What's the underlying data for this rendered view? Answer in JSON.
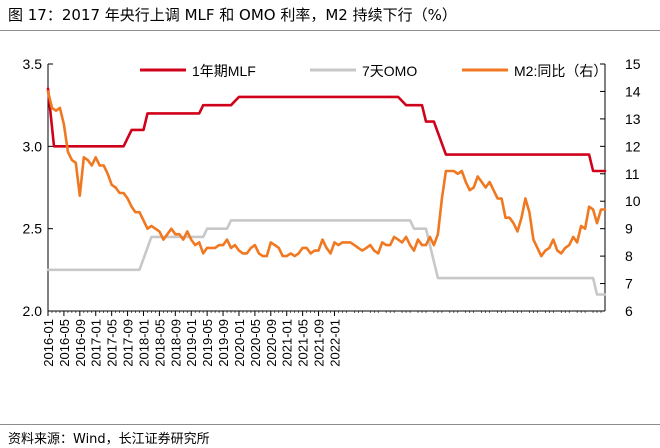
{
  "title": "图 17：2017 年央行上调 MLF 和 OMO 利率，M2 持续下行（%）",
  "source": "资料来源：Wind，长江证券研究所",
  "chart_data": {
    "type": "line",
    "ylim_left": [
      2.0,
      3.5
    ],
    "ylim_right": [
      6,
      15
    ],
    "yticks_left": [
      "2.0",
      "2.5",
      "3.0",
      "3.5"
    ],
    "yticks_right": [
      "6",
      "7",
      "8",
      "9",
      "10",
      "11",
      "12",
      "13",
      "14",
      "15"
    ],
    "xticks": [
      "2016-01",
      "2016-05",
      "2016-09",
      "2017-01",
      "2017-05",
      "2017-09",
      "2018-01",
      "2018-05",
      "2018-09",
      "2019-01",
      "2019-05",
      "2019-09",
      "2020-01",
      "2020-05",
      "2020-09",
      "2021-01",
      "2021-05",
      "2021-09",
      "2022-01"
    ],
    "legend": [
      {
        "name": "1年期MLF",
        "color": "#d0021b"
      },
      {
        "name": "7天OMO",
        "color": "#c8c8c8"
      },
      {
        "name": "M2:同比（右）",
        "color": "#f07820"
      }
    ],
    "series": [
      {
        "name": "1年期MLF",
        "axis": "left",
        "color": "#d0021b",
        "points": [
          [
            0,
            3.35
          ],
          [
            1.5,
            3.0
          ],
          [
            19,
            3.0
          ],
          [
            21,
            3.1
          ],
          [
            24,
            3.1
          ],
          [
            25,
            3.2
          ],
          [
            38,
            3.2
          ],
          [
            39,
            3.25
          ],
          [
            46,
            3.25
          ],
          [
            48,
            3.3
          ],
          [
            88,
            3.3
          ],
          [
            90,
            3.25
          ],
          [
            94,
            3.25
          ],
          [
            95,
            3.15
          ],
          [
            97,
            3.15
          ],
          [
            100,
            2.95
          ],
          [
            136,
            2.95
          ],
          [
            137,
            2.85
          ],
          [
            140,
            2.85
          ]
        ]
      },
      {
        "name": "7天OMO",
        "axis": "left",
        "color": "#c8c8c8",
        "points": [
          [
            0,
            2.25
          ],
          [
            23,
            2.25
          ],
          [
            26,
            2.45
          ],
          [
            39,
            2.45
          ],
          [
            40,
            2.5
          ],
          [
            45,
            2.5
          ],
          [
            46,
            2.55
          ],
          [
            91,
            2.55
          ],
          [
            92,
            2.5
          ],
          [
            95,
            2.5
          ],
          [
            96,
            2.4
          ],
          [
            98,
            2.2
          ],
          [
            137,
            2.2
          ],
          [
            138,
            2.1
          ],
          [
            140,
            2.1
          ]
        ]
      },
      {
        "name": "M2:同比（右）",
        "axis": "right",
        "color": "#f07820",
        "points": [
          [
            0,
            14.0
          ],
          [
            1,
            13.4
          ],
          [
            2,
            13.3
          ],
          [
            3,
            13.4
          ],
          [
            4,
            12.8
          ],
          [
            5,
            11.8
          ],
          [
            6,
            11.5
          ],
          [
            7,
            11.4
          ],
          [
            8,
            10.2
          ],
          [
            9,
            11.6
          ],
          [
            10,
            11.5
          ],
          [
            11,
            11.3
          ],
          [
            12,
            11.6
          ],
          [
            13,
            11.3
          ],
          [
            14,
            11.3
          ],
          [
            15,
            11.0
          ],
          [
            16,
            10.6
          ],
          [
            17,
            10.5
          ],
          [
            18,
            10.3
          ],
          [
            19,
            10.3
          ],
          [
            20,
            10.1
          ],
          [
            21,
            9.8
          ],
          [
            22,
            9.6
          ],
          [
            23,
            9.6
          ],
          [
            24,
            9.3
          ],
          [
            25,
            9.0
          ],
          [
            26,
            9.1
          ],
          [
            27,
            9.0
          ],
          [
            28,
            8.9
          ],
          [
            29,
            8.6
          ],
          [
            30,
            8.8
          ],
          [
            31,
            9.0
          ],
          [
            32,
            8.8
          ],
          [
            33,
            8.8
          ],
          [
            34,
            8.6
          ],
          [
            35,
            8.9
          ],
          [
            36,
            8.6
          ],
          [
            37,
            8.4
          ],
          [
            38,
            8.5
          ],
          [
            39,
            8.1
          ],
          [
            40,
            8.3
          ],
          [
            41,
            8.3
          ],
          [
            42,
            8.3
          ],
          [
            43,
            8.4
          ],
          [
            44,
            8.4
          ],
          [
            45,
            8.6
          ],
          [
            46,
            8.3
          ],
          [
            47,
            8.4
          ],
          [
            48,
            8.2
          ],
          [
            49,
            8.1
          ],
          [
            50,
            8.1
          ],
          [
            51,
            8.3
          ],
          [
            52,
            8.4
          ],
          [
            53,
            8.1
          ],
          [
            54,
            8.0
          ],
          [
            55,
            8.0
          ],
          [
            56,
            8.5
          ],
          [
            57,
            8.4
          ],
          [
            58,
            8.3
          ],
          [
            59,
            8.0
          ],
          [
            60,
            8.0
          ],
          [
            61,
            8.1
          ],
          [
            62,
            8.0
          ],
          [
            63,
            8.1
          ],
          [
            64,
            8.3
          ],
          [
            65,
            8.3
          ],
          [
            66,
            8.1
          ],
          [
            67,
            8.2
          ],
          [
            68,
            8.2
          ],
          [
            69,
            8.6
          ],
          [
            70,
            8.3
          ],
          [
            71,
            8.1
          ],
          [
            72,
            8.5
          ],
          [
            73,
            8.4
          ],
          [
            74,
            8.5
          ],
          [
            75,
            8.5
          ],
          [
            76,
            8.5
          ],
          [
            77,
            8.4
          ],
          [
            78,
            8.3
          ],
          [
            79,
            8.2
          ],
          [
            80,
            8.3
          ],
          [
            81,
            8.4
          ],
          [
            82,
            8.2
          ],
          [
            83,
            8.1
          ],
          [
            84,
            8.5
          ],
          [
            85,
            8.4
          ],
          [
            86,
            8.4
          ],
          [
            87,
            8.7
          ],
          [
            88,
            8.6
          ],
          [
            89,
            8.5
          ],
          [
            90,
            8.7
          ],
          [
            91,
            8.4
          ],
          [
            92,
            8.2
          ],
          [
            93,
            8.6
          ],
          [
            94,
            8.4
          ],
          [
            95,
            8.4
          ],
          [
            96,
            8.7
          ],
          [
            97,
            8.4
          ],
          [
            98,
            8.8
          ],
          [
            99,
            10.1
          ],
          [
            100,
            11.1
          ],
          [
            101,
            11.1
          ],
          [
            102,
            11.1
          ],
          [
            103,
            11.0
          ],
          [
            104,
            11.1
          ],
          [
            105,
            10.7
          ],
          [
            106,
            10.4
          ],
          [
            107,
            10.5
          ],
          [
            108,
            10.9
          ],
          [
            109,
            10.7
          ],
          [
            110,
            10.5
          ],
          [
            111,
            10.7
          ],
          [
            112,
            10.4
          ],
          [
            113,
            10.1
          ],
          [
            114,
            10.1
          ],
          [
            115,
            9.4
          ],
          [
            116,
            9.4
          ],
          [
            117,
            9.2
          ],
          [
            118,
            8.9
          ],
          [
            119,
            9.4
          ],
          [
            120,
            10.1
          ],
          [
            121,
            9.6
          ],
          [
            122,
            8.6
          ],
          [
            123,
            8.3
          ],
          [
            124,
            8.0
          ],
          [
            125,
            8.2
          ],
          [
            126,
            8.3
          ],
          [
            127,
            8.6
          ],
          [
            128,
            8.2
          ],
          [
            129,
            8.1
          ],
          [
            130,
            8.3
          ],
          [
            131,
            8.4
          ],
          [
            132,
            8.7
          ],
          [
            133,
            8.5
          ],
          [
            134,
            9.1
          ],
          [
            135,
            9.0
          ],
          [
            136,
            9.8
          ],
          [
            137,
            9.7
          ],
          [
            138,
            9.2
          ],
          [
            139,
            9.7
          ],
          [
            140,
            9.7
          ]
        ]
      }
    ]
  }
}
